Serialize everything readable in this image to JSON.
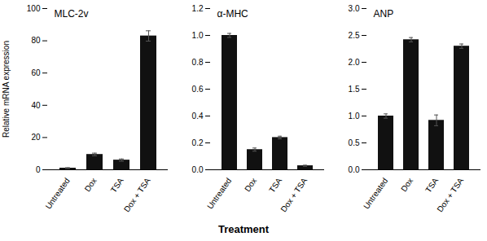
{
  "chart_data": [
    {
      "type": "bar",
      "title": "MLC-2v",
      "categories": [
        "Untreated",
        "Dox",
        "TSA",
        "Dox + TSA"
      ],
      "values": [
        1.0,
        9.5,
        6.0,
        83.0
      ],
      "errors": [
        0.3,
        0.8,
        0.7,
        3.2
      ],
      "color": "#111111",
      "ylabel": "Relative mRNA expression",
      "ylim": [
        0,
        100
      ],
      "yticks": [
        0,
        20,
        40,
        60,
        80,
        100
      ],
      "grid": false
    },
    {
      "type": "bar",
      "title": "α-MHC",
      "categories": [
        "Untreated",
        "Dox",
        "TSA",
        "Dox + TSA"
      ],
      "values": [
        1.0,
        0.15,
        0.24,
        0.03
      ],
      "errors": [
        0.015,
        0.012,
        0.01,
        0.004
      ],
      "color": "#111111",
      "xlabel": "Treatment",
      "ylim": [
        0,
        1.2
      ],
      "yticks": [
        {
          "value": 0.0,
          "label": "0.0"
        },
        0.2,
        0.4,
        0.6,
        0.8,
        {
          "value": 1.0,
          "label": "1.0"
        },
        1.2
      ],
      "grid": false
    },
    {
      "type": "bar",
      "title": "ANP",
      "categories": [
        "Untreated",
        "Dox",
        "TSA",
        "Dox + TSA"
      ],
      "values": [
        1.0,
        2.42,
        0.92,
        2.3
      ],
      "errors": [
        0.04,
        0.04,
        0.1,
        0.04
      ],
      "color": "#111111",
      "ylim": [
        0,
        3.0
      ],
      "yticks": [
        {
          "value": 0.0,
          "label": "0.0"
        },
        0.5,
        {
          "value": 1.0,
          "label": "1.0"
        },
        1.5,
        {
          "value": 2.0,
          "label": "2.0"
        },
        2.5,
        {
          "value": 3.0,
          "label": "3.0"
        }
      ],
      "grid": false
    }
  ]
}
